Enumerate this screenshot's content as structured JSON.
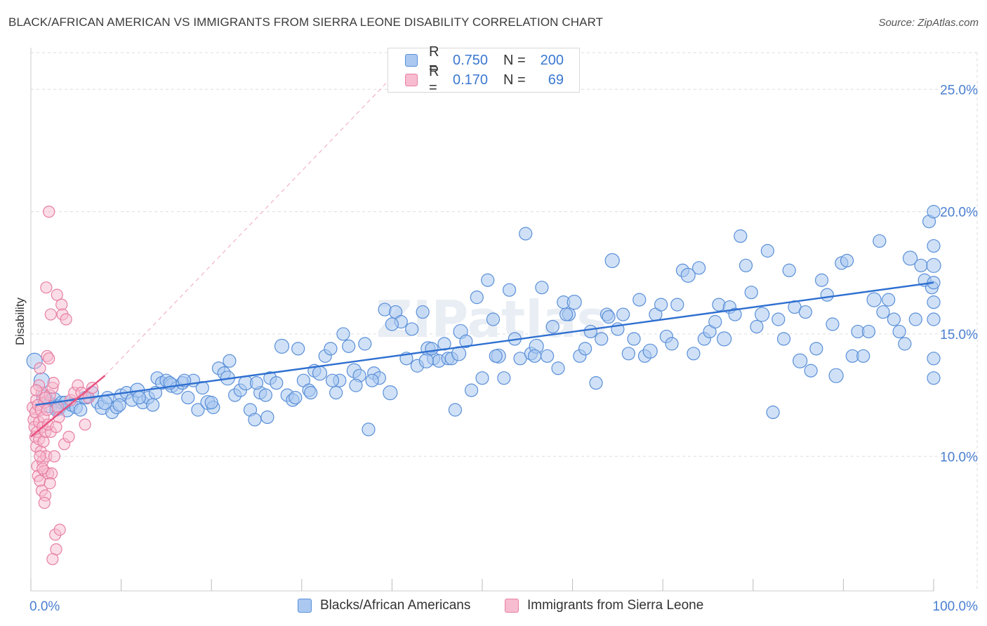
{
  "title": "BLACK/AFRICAN AMERICAN VS IMMIGRANTS FROM SIERRA LEONE DISABILITY CORRELATION CHART",
  "source": "Source: ZipAtlas.com",
  "watermark": "ZIPatlas",
  "legend": {
    "series1": {
      "r_label": "R =",
      "r_value": "0.750",
      "n_label": "N =",
      "n_value": "200"
    },
    "series2": {
      "r_label": "R =",
      "r_value": "0.170",
      "n_label": "N =",
      "n_value": "69"
    }
  },
  "colors": {
    "blue_fill": "#aac8f0",
    "blue_stroke": "#5a8fd8",
    "blue_line": "#2e6fd0",
    "pink_fill": "#f7bcd0",
    "pink_stroke": "#e77fa3",
    "pink_line": "#e8507e",
    "tick_text": "#4a7fd0",
    "grid": "#dddddd"
  },
  "chart_data": {
    "type": "scatter",
    "xlabel": "",
    "ylabel": "Disability",
    "xlim": [
      0,
      100
    ],
    "ylim": [
      4.5,
      26.5
    ],
    "x_tick_labels": [
      {
        "value": 0,
        "label": "0.0%"
      },
      {
        "value": 100,
        "label": "100.0%"
      }
    ],
    "y_tick_labels": [
      {
        "value": 10,
        "label": "10.0%"
      },
      {
        "value": 15,
        "label": "15.0%"
      },
      {
        "value": 20,
        "label": "20.0%"
      },
      {
        "value": 25,
        "label": "25.0%"
      }
    ],
    "series": [
      {
        "name": "Blacks/African Americans",
        "r": 0.75,
        "n": 200,
        "trend": {
          "x": [
            0.5,
            100
          ],
          "y": [
            12.1,
            17.1
          ]
        },
        "points": [
          [
            0.4,
            13.9
          ],
          [
            1.2,
            13.1
          ],
          [
            1.5,
            12.4
          ],
          [
            2.1,
            12.1
          ],
          [
            2.5,
            12.3
          ],
          [
            3.0,
            12.0
          ],
          [
            3.4,
            12.2
          ],
          [
            4.0,
            11.9
          ],
          [
            4.5,
            12.1
          ],
          [
            5.0,
            12.0
          ],
          [
            5.5,
            11.9
          ],
          [
            6.2,
            12.4
          ],
          [
            6.8,
            12.6
          ],
          [
            7.4,
            12.2
          ],
          [
            7.9,
            12.0
          ],
          [
            8.5,
            12.4
          ],
          [
            9.0,
            11.8
          ],
          [
            9.5,
            12.0
          ],
          [
            10.0,
            12.5
          ],
          [
            10.6,
            12.6
          ],
          [
            11.2,
            12.3
          ],
          [
            11.8,
            12.7
          ],
          [
            12.4,
            12.2
          ],
          [
            13.0,
            12.4
          ],
          [
            13.5,
            12.1
          ],
          [
            14.0,
            13.2
          ],
          [
            14.5,
            13.0
          ],
          [
            15.0,
            13.1
          ],
          [
            15.6,
            12.9
          ],
          [
            16.2,
            12.8
          ],
          [
            16.8,
            13.0
          ],
          [
            17.4,
            12.4
          ],
          [
            18.0,
            13.1
          ],
          [
            18.5,
            11.9
          ],
          [
            19.0,
            12.8
          ],
          [
            19.6,
            12.2
          ],
          [
            20.2,
            12.0
          ],
          [
            20.8,
            13.6
          ],
          [
            21.4,
            13.4
          ],
          [
            22.0,
            13.9
          ],
          [
            22.6,
            12.5
          ],
          [
            23.2,
            12.7
          ],
          [
            23.8,
            13.0
          ],
          [
            24.3,
            11.9
          ],
          [
            24.8,
            11.5
          ],
          [
            25.4,
            12.6
          ],
          [
            26.0,
            12.5
          ],
          [
            26.5,
            13.2
          ],
          [
            27.2,
            13.0
          ],
          [
            27.8,
            14.5
          ],
          [
            28.4,
            12.5
          ],
          [
            29.0,
            12.3
          ],
          [
            29.6,
            14.4
          ],
          [
            30.2,
            13.1
          ],
          [
            30.8,
            12.7
          ],
          [
            31.4,
            13.5
          ],
          [
            32.0,
            13.4
          ],
          [
            32.6,
            14.1
          ],
          [
            33.2,
            14.4
          ],
          [
            33.8,
            12.6
          ],
          [
            34.2,
            13.1
          ],
          [
            34.6,
            15.0
          ],
          [
            35.2,
            14.5
          ],
          [
            35.8,
            13.5
          ],
          [
            36.4,
            13.3
          ],
          [
            37.0,
            14.6
          ],
          [
            37.4,
            11.1
          ],
          [
            38.0,
            13.4
          ],
          [
            38.6,
            13.2
          ],
          [
            39.2,
            16.0
          ],
          [
            39.8,
            12.6
          ],
          [
            40.4,
            15.9
          ],
          [
            41.0,
            15.5
          ],
          [
            41.6,
            14.0
          ],
          [
            42.2,
            15.2
          ],
          [
            42.8,
            13.7
          ],
          [
            43.4,
            15.9
          ],
          [
            44.0,
            14.4
          ],
          [
            44.6,
            14.0
          ],
          [
            45.2,
            13.9
          ],
          [
            45.8,
            14.6
          ],
          [
            46.2,
            14.0
          ],
          [
            46.6,
            14.0
          ],
          [
            47.0,
            11.9
          ],
          [
            47.6,
            15.1
          ],
          [
            48.2,
            14.7
          ],
          [
            48.8,
            12.7
          ],
          [
            49.4,
            16.5
          ],
          [
            50.0,
            13.2
          ],
          [
            50.6,
            17.2
          ],
          [
            51.2,
            15.6
          ],
          [
            51.8,
            14.1
          ],
          [
            52.4,
            13.2
          ],
          [
            53.0,
            16.8
          ],
          [
            53.6,
            14.8
          ],
          [
            54.2,
            14.0
          ],
          [
            54.8,
            19.1
          ],
          [
            55.4,
            14.2
          ],
          [
            56.0,
            14.5
          ],
          [
            56.6,
            16.9
          ],
          [
            57.2,
            14.1
          ],
          [
            57.8,
            15.3
          ],
          [
            58.4,
            13.6
          ],
          [
            59.0,
            16.3
          ],
          [
            59.6,
            15.8
          ],
          [
            60.2,
            16.3
          ],
          [
            60.8,
            14.1
          ],
          [
            61.4,
            14.4
          ],
          [
            62.0,
            15.1
          ],
          [
            62.6,
            13.0
          ],
          [
            63.2,
            14.8
          ],
          [
            63.8,
            15.8
          ],
          [
            64.4,
            18.0
          ],
          [
            65.0,
            15.2
          ],
          [
            65.6,
            15.8
          ],
          [
            66.2,
            14.2
          ],
          [
            66.8,
            14.8
          ],
          [
            67.4,
            16.4
          ],
          [
            68.0,
            14.1
          ],
          [
            68.6,
            14.3
          ],
          [
            69.2,
            15.8
          ],
          [
            69.8,
            16.2
          ],
          [
            70.4,
            14.9
          ],
          [
            71.0,
            14.6
          ],
          [
            71.6,
            16.2
          ],
          [
            72.2,
            17.6
          ],
          [
            72.8,
            17.4
          ],
          [
            73.4,
            14.2
          ],
          [
            74.0,
            17.7
          ],
          [
            74.6,
            14.8
          ],
          [
            75.2,
            15.1
          ],
          [
            75.8,
            15.5
          ],
          [
            76.2,
            16.2
          ],
          [
            76.8,
            14.8
          ],
          [
            77.4,
            16.1
          ],
          [
            78.0,
            15.8
          ],
          [
            78.6,
            19.0
          ],
          [
            79.2,
            17.8
          ],
          [
            79.8,
            16.7
          ],
          [
            80.4,
            15.3
          ],
          [
            81.0,
            15.8
          ],
          [
            81.6,
            18.4
          ],
          [
            82.2,
            11.8
          ],
          [
            82.8,
            15.6
          ],
          [
            83.4,
            14.8
          ],
          [
            84.0,
            17.6
          ],
          [
            84.6,
            16.1
          ],
          [
            85.2,
            13.9
          ],
          [
            85.8,
            15.9
          ],
          [
            86.4,
            13.5
          ],
          [
            87.0,
            14.4
          ],
          [
            87.6,
            17.2
          ],
          [
            88.2,
            16.6
          ],
          [
            88.8,
            15.4
          ],
          [
            89.2,
            13.3
          ],
          [
            89.8,
            17.9
          ],
          [
            90.4,
            18.0
          ],
          [
            91.0,
            14.1
          ],
          [
            91.6,
            15.1
          ],
          [
            92.2,
            14.1
          ],
          [
            92.8,
            15.1
          ],
          [
            93.4,
            16.4
          ],
          [
            94.0,
            18.8
          ],
          [
            94.4,
            15.9
          ],
          [
            95.0,
            16.4
          ],
          [
            95.6,
            15.6
          ],
          [
            96.2,
            15.1
          ],
          [
            96.8,
            14.6
          ],
          [
            97.4,
            18.1
          ],
          [
            98.0,
            15.6
          ],
          [
            98.6,
            17.8
          ],
          [
            99.0,
            17.2
          ],
          [
            99.5,
            19.6
          ],
          [
            99.8,
            16.9
          ],
          [
            100.2,
            20.0
          ],
          [
            100.8,
            17.8
          ],
          [
            101.4,
            17.1
          ],
          [
            101.8,
            14.0
          ],
          [
            102.2,
            15.6
          ],
          [
            102.6,
            16.3
          ],
          [
            103.0,
            13.2
          ],
          [
            103.4,
            18.6
          ],
          [
            43.8,
            13.9
          ],
          [
            37.8,
            13.1
          ],
          [
            31.0,
            12.6
          ],
          [
            25.0,
            13.0
          ],
          [
            20.0,
            12.2
          ],
          [
            15.4,
            13.0
          ],
          [
            12.0,
            12.4
          ],
          [
            8.2,
            12.2
          ],
          [
            3.8,
            12.2
          ],
          [
            2.8,
            11.9
          ],
          [
            6.0,
            12.4
          ],
          [
            9.8,
            12.1
          ],
          [
            13.8,
            12.6
          ],
          [
            17.0,
            13.1
          ],
          [
            21.8,
            13.2
          ],
          [
            26.2,
            11.6
          ],
          [
            29.3,
            12.4
          ],
          [
            33.4,
            13.1
          ],
          [
            36.0,
            12.9
          ],
          [
            40.0,
            15.4
          ],
          [
            44.4,
            14.4
          ],
          [
            47.4,
            14.2
          ],
          [
            51.5,
            14.1
          ],
          [
            55.8,
            14.1
          ],
          [
            59.3,
            15.8
          ],
          [
            64.0,
            15.7
          ]
        ]
      },
      {
        "name": "Immigrants from Sierra Leone",
        "r": 0.17,
        "n": 69,
        "trend": {
          "x": [
            0.0,
            8.2
          ],
          "y": [
            10.8,
            13.3
          ]
        },
        "points": [
          [
            0.2,
            12.0
          ],
          [
            0.3,
            11.5
          ],
          [
            0.4,
            11.2
          ],
          [
            0.5,
            10.8
          ],
          [
            0.5,
            11.8
          ],
          [
            0.6,
            12.3
          ],
          [
            0.6,
            10.4
          ],
          [
            0.7,
            11.0
          ],
          [
            0.7,
            9.6
          ],
          [
            0.8,
            12.1
          ],
          [
            0.8,
            9.2
          ],
          [
            0.9,
            11.4
          ],
          [
            0.9,
            10.7
          ],
          [
            1.0,
            13.6
          ],
          [
            1.0,
            9.0
          ],
          [
            1.1,
            11.9
          ],
          [
            1.1,
            10.2
          ],
          [
            1.2,
            12.6
          ],
          [
            1.2,
            8.6
          ],
          [
            1.3,
            11.2
          ],
          [
            1.3,
            9.8
          ],
          [
            1.4,
            11.6
          ],
          [
            1.4,
            10.6
          ],
          [
            1.5,
            12.2
          ],
          [
            1.5,
            9.4
          ],
          [
            1.6,
            11.0
          ],
          [
            1.6,
            8.4
          ],
          [
            1.7,
            16.9
          ],
          [
            1.7,
            10.0
          ],
          [
            1.8,
            14.1
          ],
          [
            1.8,
            11.9
          ],
          [
            1.9,
            9.3
          ],
          [
            2.0,
            14.0
          ],
          [
            2.0,
            20.0
          ],
          [
            2.1,
            12.5
          ],
          [
            2.2,
            15.8
          ],
          [
            2.2,
            11.0
          ],
          [
            2.3,
            9.3
          ],
          [
            2.4,
            12.8
          ],
          [
            2.5,
            13.0
          ],
          [
            2.6,
            10.0
          ],
          [
            2.7,
            6.8
          ],
          [
            2.8,
            6.2
          ],
          [
            2.9,
            16.6
          ],
          [
            3.0,
            12.0
          ],
          [
            3.1,
            11.6
          ],
          [
            3.2,
            7.0
          ],
          [
            3.4,
            16.2
          ],
          [
            3.5,
            15.8
          ],
          [
            3.7,
            10.5
          ],
          [
            3.9,
            15.6
          ],
          [
            4.2,
            10.8
          ],
          [
            4.4,
            12.3
          ],
          [
            4.8,
            12.6
          ],
          [
            5.2,
            12.9
          ],
          [
            5.6,
            12.6
          ],
          [
            6.0,
            11.3
          ],
          [
            6.4,
            12.4
          ],
          [
            6.8,
            12.8
          ],
          [
            2.4,
            5.8
          ],
          [
            1.5,
            8.1
          ],
          [
            0.9,
            12.9
          ],
          [
            1.0,
            10.0
          ],
          [
            1.9,
            11.3
          ],
          [
            2.1,
            8.9
          ],
          [
            1.3,
            9.5
          ],
          [
            0.6,
            12.7
          ],
          [
            1.6,
            12.4
          ],
          [
            2.8,
            11.2
          ]
        ]
      }
    ]
  },
  "bottom_legend": {
    "series1_label": "Blacks/African Americans",
    "series2_label": "Immigrants from Sierra Leone"
  }
}
